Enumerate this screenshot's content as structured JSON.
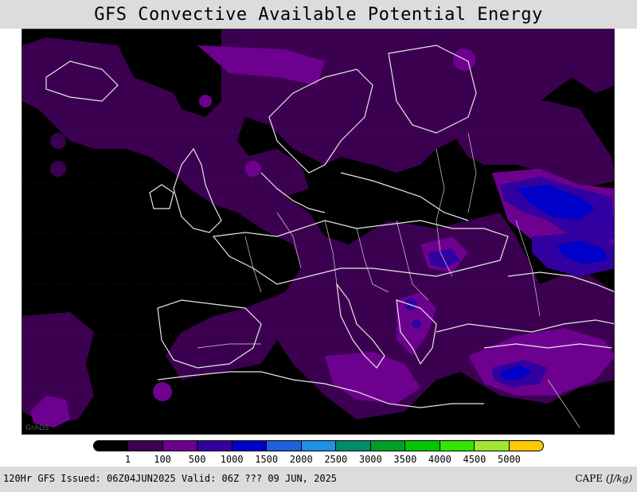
{
  "title": "GFS Convective Available Potential Energy",
  "credit": "GrADS",
  "colorbar": {
    "colors": [
      "#000000",
      "#3c0050",
      "#6e0090",
      "#3200a0",
      "#0000c8",
      "#2060dc",
      "#1e90e6",
      "#008c6e",
      "#00a028",
      "#00c800",
      "#32e600",
      "#a0e632",
      "#ffc800"
    ],
    "labels": [
      "1",
      "100",
      "500",
      "1000",
      "1500",
      "2000",
      "2500",
      "3000",
      "3500",
      "4000",
      "4500",
      "5000"
    ]
  },
  "footer": {
    "left": "120Hr GFS Issued: 06Z04JUN2025 Valid: 06Z ??? 09 JUN, 2025",
    "right_prefix": "CAPE",
    "right_unit": "(J/kg)"
  },
  "map": {
    "background": "#000000",
    "coastline_color": "#e6e6e6"
  }
}
